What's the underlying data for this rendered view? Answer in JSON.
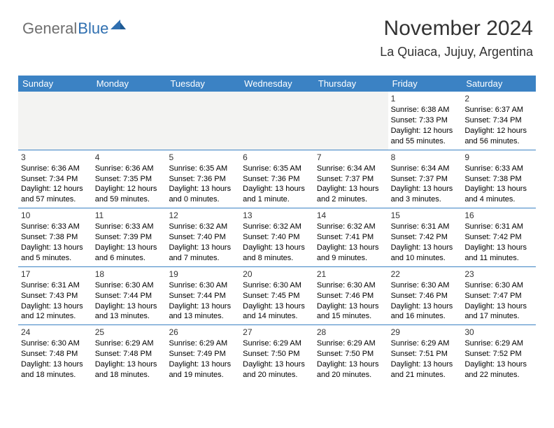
{
  "logo": {
    "a": "General",
    "b": "Blue"
  },
  "title": "November 2024",
  "location": "La Quiaca, Jujuy, Argentina",
  "colors": {
    "accent": "#3b82c4",
    "empty_cell": "#f3f3f2",
    "row_divider": "#3b82c4",
    "logo_gray": "#6f6f6f",
    "logo_blue": "#2f6fb0",
    "text": "#000000",
    "header_text": "#333333",
    "background": "#ffffff"
  },
  "day_headers": [
    "Sunday",
    "Monday",
    "Tuesday",
    "Wednesday",
    "Thursday",
    "Friday",
    "Saturday"
  ],
  "weeks": [
    [
      null,
      null,
      null,
      null,
      null,
      {
        "n": "1",
        "sr": "Sunrise: 6:38 AM",
        "ss": "Sunset: 7:33 PM",
        "d1": "Daylight: 12 hours",
        "d2": "and 55 minutes."
      },
      {
        "n": "2",
        "sr": "Sunrise: 6:37 AM",
        "ss": "Sunset: 7:34 PM",
        "d1": "Daylight: 12 hours",
        "d2": "and 56 minutes."
      }
    ],
    [
      {
        "n": "3",
        "sr": "Sunrise: 6:36 AM",
        "ss": "Sunset: 7:34 PM",
        "d1": "Daylight: 12 hours",
        "d2": "and 57 minutes."
      },
      {
        "n": "4",
        "sr": "Sunrise: 6:36 AM",
        "ss": "Sunset: 7:35 PM",
        "d1": "Daylight: 12 hours",
        "d2": "and 59 minutes."
      },
      {
        "n": "5",
        "sr": "Sunrise: 6:35 AM",
        "ss": "Sunset: 7:36 PM",
        "d1": "Daylight: 13 hours",
        "d2": "and 0 minutes."
      },
      {
        "n": "6",
        "sr": "Sunrise: 6:35 AM",
        "ss": "Sunset: 7:36 PM",
        "d1": "Daylight: 13 hours",
        "d2": "and 1 minute."
      },
      {
        "n": "7",
        "sr": "Sunrise: 6:34 AM",
        "ss": "Sunset: 7:37 PM",
        "d1": "Daylight: 13 hours",
        "d2": "and 2 minutes."
      },
      {
        "n": "8",
        "sr": "Sunrise: 6:34 AM",
        "ss": "Sunset: 7:37 PM",
        "d1": "Daylight: 13 hours",
        "d2": "and 3 minutes."
      },
      {
        "n": "9",
        "sr": "Sunrise: 6:33 AM",
        "ss": "Sunset: 7:38 PM",
        "d1": "Daylight: 13 hours",
        "d2": "and 4 minutes."
      }
    ],
    [
      {
        "n": "10",
        "sr": "Sunrise: 6:33 AM",
        "ss": "Sunset: 7:38 PM",
        "d1": "Daylight: 13 hours",
        "d2": "and 5 minutes."
      },
      {
        "n": "11",
        "sr": "Sunrise: 6:33 AM",
        "ss": "Sunset: 7:39 PM",
        "d1": "Daylight: 13 hours",
        "d2": "and 6 minutes."
      },
      {
        "n": "12",
        "sr": "Sunrise: 6:32 AM",
        "ss": "Sunset: 7:40 PM",
        "d1": "Daylight: 13 hours",
        "d2": "and 7 minutes."
      },
      {
        "n": "13",
        "sr": "Sunrise: 6:32 AM",
        "ss": "Sunset: 7:40 PM",
        "d1": "Daylight: 13 hours",
        "d2": "and 8 minutes."
      },
      {
        "n": "14",
        "sr": "Sunrise: 6:32 AM",
        "ss": "Sunset: 7:41 PM",
        "d1": "Daylight: 13 hours",
        "d2": "and 9 minutes."
      },
      {
        "n": "15",
        "sr": "Sunrise: 6:31 AM",
        "ss": "Sunset: 7:42 PM",
        "d1": "Daylight: 13 hours",
        "d2": "and 10 minutes."
      },
      {
        "n": "16",
        "sr": "Sunrise: 6:31 AM",
        "ss": "Sunset: 7:42 PM",
        "d1": "Daylight: 13 hours",
        "d2": "and 11 minutes."
      }
    ],
    [
      {
        "n": "17",
        "sr": "Sunrise: 6:31 AM",
        "ss": "Sunset: 7:43 PM",
        "d1": "Daylight: 13 hours",
        "d2": "and 12 minutes."
      },
      {
        "n": "18",
        "sr": "Sunrise: 6:30 AM",
        "ss": "Sunset: 7:44 PM",
        "d1": "Daylight: 13 hours",
        "d2": "and 13 minutes."
      },
      {
        "n": "19",
        "sr": "Sunrise: 6:30 AM",
        "ss": "Sunset: 7:44 PM",
        "d1": "Daylight: 13 hours",
        "d2": "and 13 minutes."
      },
      {
        "n": "20",
        "sr": "Sunrise: 6:30 AM",
        "ss": "Sunset: 7:45 PM",
        "d1": "Daylight: 13 hours",
        "d2": "and 14 minutes."
      },
      {
        "n": "21",
        "sr": "Sunrise: 6:30 AM",
        "ss": "Sunset: 7:46 PM",
        "d1": "Daylight: 13 hours",
        "d2": "and 15 minutes."
      },
      {
        "n": "22",
        "sr": "Sunrise: 6:30 AM",
        "ss": "Sunset: 7:46 PM",
        "d1": "Daylight: 13 hours",
        "d2": "and 16 minutes."
      },
      {
        "n": "23",
        "sr": "Sunrise: 6:30 AM",
        "ss": "Sunset: 7:47 PM",
        "d1": "Daylight: 13 hours",
        "d2": "and 17 minutes."
      }
    ],
    [
      {
        "n": "24",
        "sr": "Sunrise: 6:30 AM",
        "ss": "Sunset: 7:48 PM",
        "d1": "Daylight: 13 hours",
        "d2": "and 18 minutes."
      },
      {
        "n": "25",
        "sr": "Sunrise: 6:29 AM",
        "ss": "Sunset: 7:48 PM",
        "d1": "Daylight: 13 hours",
        "d2": "and 18 minutes."
      },
      {
        "n": "26",
        "sr": "Sunrise: 6:29 AM",
        "ss": "Sunset: 7:49 PM",
        "d1": "Daylight: 13 hours",
        "d2": "and 19 minutes."
      },
      {
        "n": "27",
        "sr": "Sunrise: 6:29 AM",
        "ss": "Sunset: 7:50 PM",
        "d1": "Daylight: 13 hours",
        "d2": "and 20 minutes."
      },
      {
        "n": "28",
        "sr": "Sunrise: 6:29 AM",
        "ss": "Sunset: 7:50 PM",
        "d1": "Daylight: 13 hours",
        "d2": "and 20 minutes."
      },
      {
        "n": "29",
        "sr": "Sunrise: 6:29 AM",
        "ss": "Sunset: 7:51 PM",
        "d1": "Daylight: 13 hours",
        "d2": "and 21 minutes."
      },
      {
        "n": "30",
        "sr": "Sunrise: 6:29 AM",
        "ss": "Sunset: 7:52 PM",
        "d1": "Daylight: 13 hours",
        "d2": "and 22 minutes."
      }
    ]
  ]
}
